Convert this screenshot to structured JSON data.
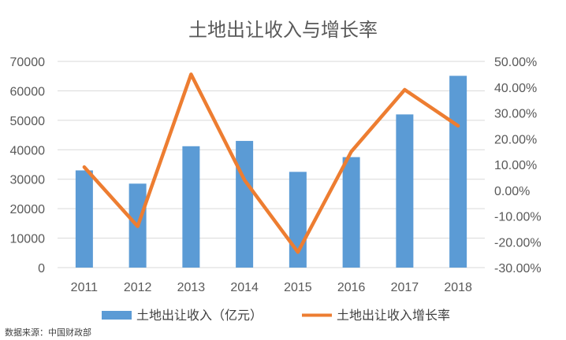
{
  "chart_data": {
    "type": "bar+line",
    "title": "土地出让收入与增长率",
    "categories": [
      "2011",
      "2012",
      "2013",
      "2014",
      "2015",
      "2016",
      "2017",
      "2018"
    ],
    "series": [
      {
        "name": "土地出让收入（亿元）",
        "type": "bar",
        "axis": "left",
        "color": "#5B9BD5",
        "values": [
          33000,
          28500,
          41200,
          43000,
          32500,
          37500,
          52000,
          65100
        ]
      },
      {
        "name": "土地出让收入增长率",
        "type": "line",
        "axis": "right",
        "color": "#ED7D31",
        "values": [
          0.09,
          -0.14,
          0.45,
          0.04,
          -0.24,
          0.15,
          0.39,
          0.25
        ]
      }
    ],
    "left_axis": {
      "min": 0,
      "max": 70000,
      "step": 10000,
      "tick_labels": [
        "0",
        "10000",
        "20000",
        "30000",
        "40000",
        "50000",
        "60000",
        "70000"
      ]
    },
    "right_axis": {
      "min": -0.3,
      "max": 0.5,
      "step": 0.1,
      "tick_labels": [
        "-30.00%",
        "-20.00%",
        "-10.00%",
        "0.00%",
        "10.00%",
        "20.00%",
        "30.00%",
        "40.00%",
        "50.00%"
      ]
    },
    "grid": true,
    "legend_position": "bottom"
  },
  "source_note": "数据来源：中国财政部"
}
